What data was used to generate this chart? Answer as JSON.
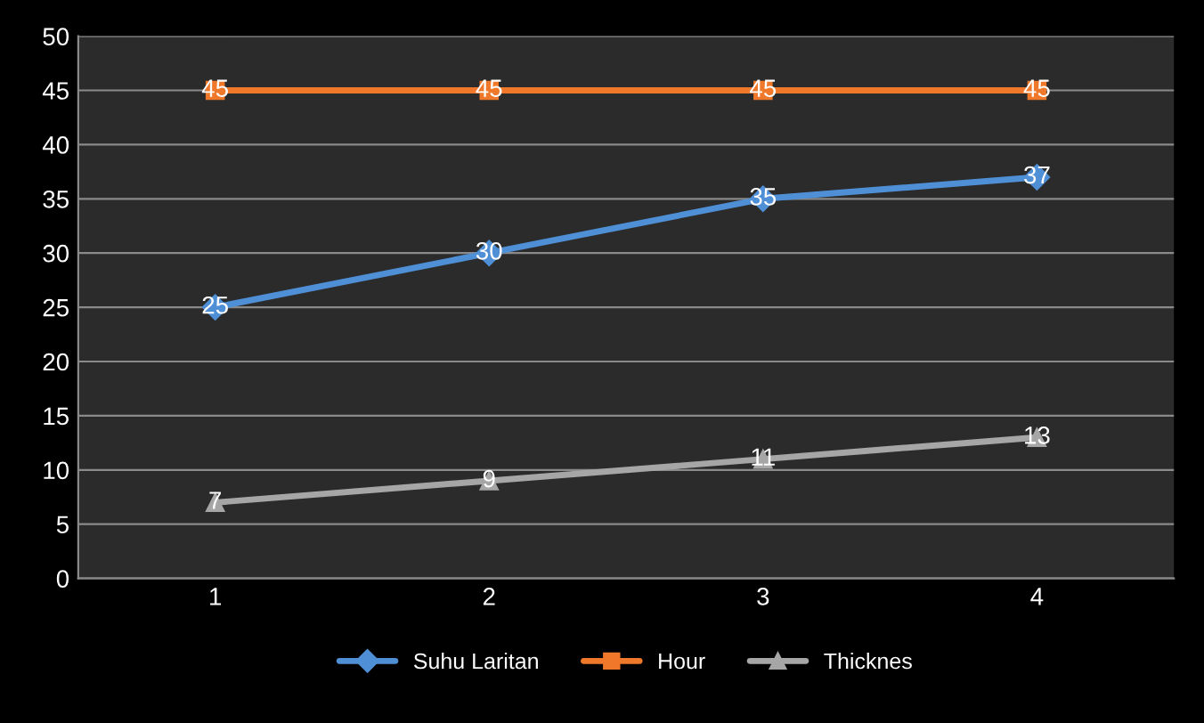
{
  "chart_data": {
    "type": "line",
    "categories": [
      "1",
      "2",
      "3",
      "4"
    ],
    "series": [
      {
        "name": "Suhu Laritan",
        "color": "#4f8fd6",
        "marker": "diamond",
        "values": [
          25,
          30,
          35,
          37
        ]
      },
      {
        "name": "Hour",
        "color": "#f0782a",
        "marker": "square",
        "values": [
          45,
          45,
          45,
          45
        ]
      },
      {
        "name": "Thicknes",
        "color": "#a6a6a6",
        "marker": "triangle",
        "values": [
          7,
          9,
          11,
          13
        ]
      }
    ],
    "ylim": [
      0,
      50
    ],
    "yticks": [
      0,
      5,
      10,
      15,
      20,
      25,
      30,
      35,
      40,
      45,
      50
    ],
    "grid": "y",
    "legend": "bottom",
    "data_labels": true,
    "line_style": "solid"
  }
}
